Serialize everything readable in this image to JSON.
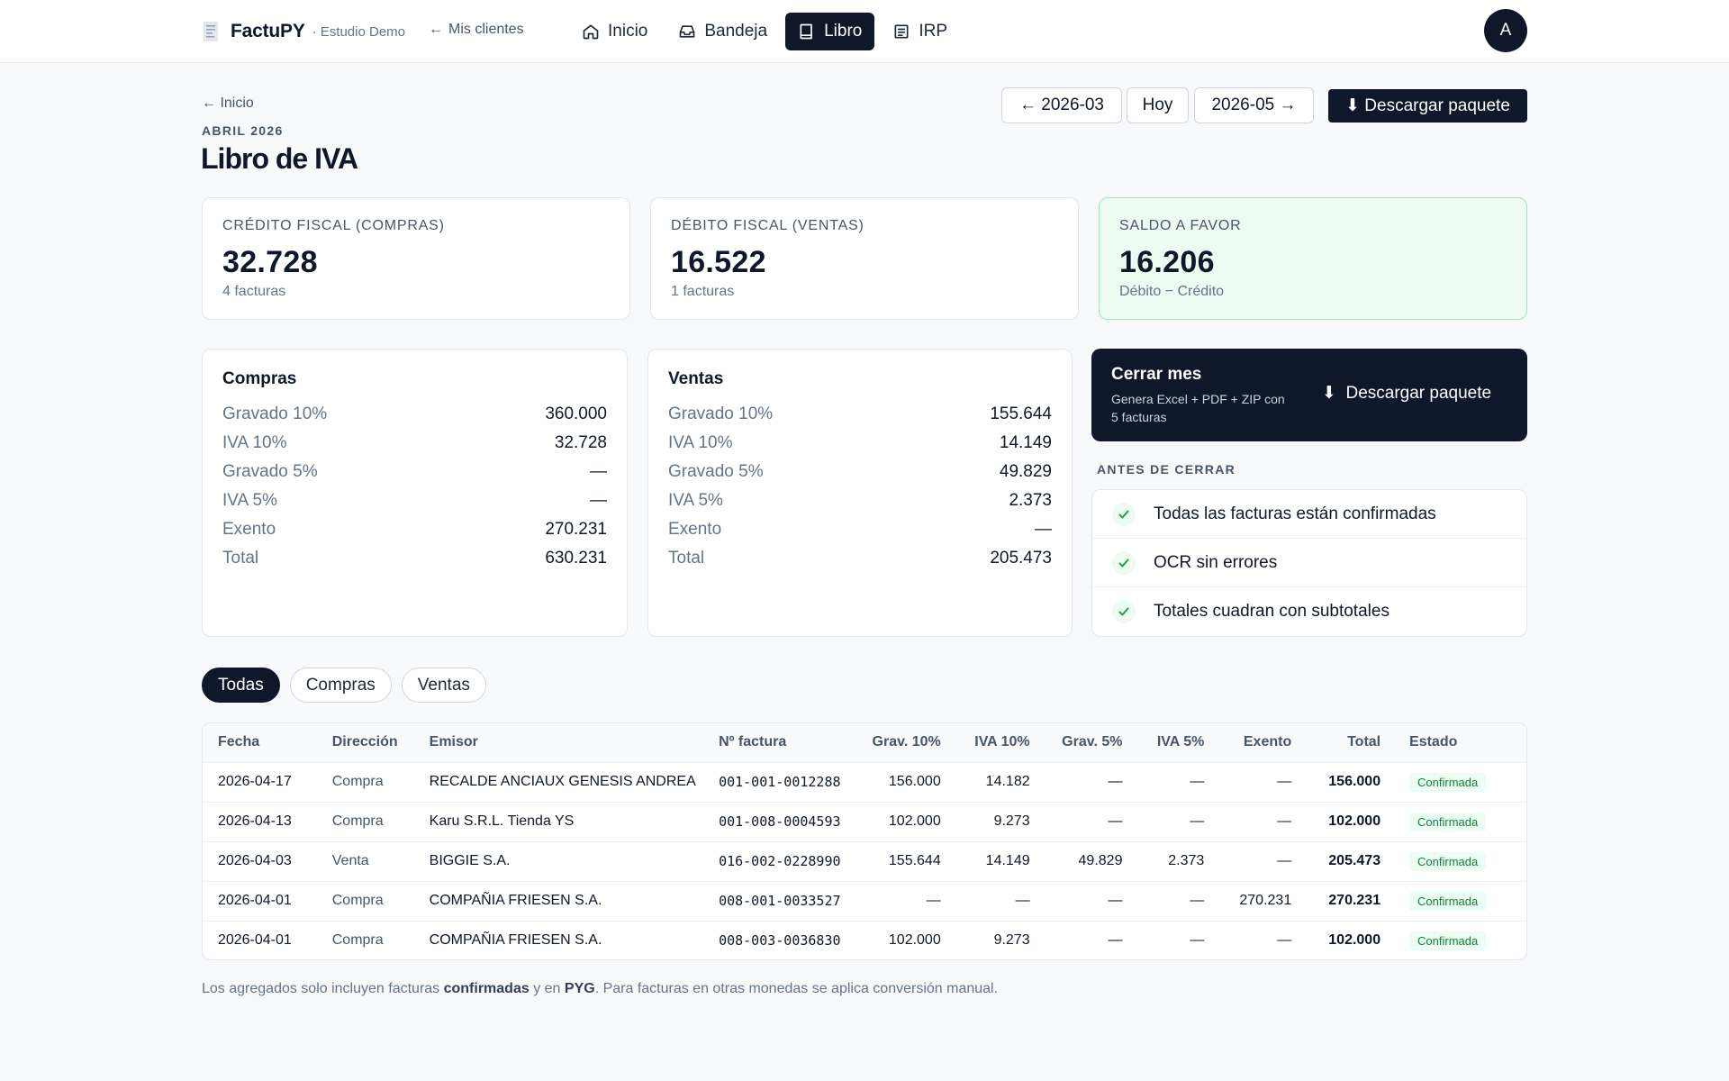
{
  "app": {
    "name": "FactuPY",
    "org": "· Estudio Demo",
    "back_clients": "Mis clientes"
  },
  "nav": {
    "inicio": "Inicio",
    "bandeja": "Bandeja",
    "libro": "Libro",
    "irp": "IRP",
    "active": "Libro"
  },
  "user": {
    "avatar_letter": "A"
  },
  "header": {
    "crumb": "Inicio",
    "eyebrow": "ABRIL 2026",
    "title": "Libro de IVA",
    "prev_month": "2026-03",
    "today": "Hoy",
    "next_month": "2026-05",
    "download": "Descargar paquete"
  },
  "summary": {
    "credit": {
      "label": "CRÉDITO FISCAL (COMPRAS)",
      "value": "32.728",
      "sub": "4 facturas"
    },
    "debit": {
      "label": "DÉBITO FISCAL (VENTAS)",
      "value": "16.522",
      "sub": "1 facturas"
    },
    "balance": {
      "label": "SALDO A FAVOR",
      "value": "16.206",
      "sub": "Débito − Crédito"
    }
  },
  "compras": {
    "title": "Compras",
    "rows": [
      {
        "label": "Gravado 10%",
        "value": "360.000"
      },
      {
        "label": "IVA 10%",
        "value": "32.728"
      },
      {
        "label": "Gravado 5%",
        "value": "—"
      },
      {
        "label": "IVA 5%",
        "value": "—"
      },
      {
        "label": "Exento",
        "value": "270.231"
      },
      {
        "label": "Total",
        "value": "630.231"
      }
    ]
  },
  "ventas": {
    "title": "Ventas",
    "rows": [
      {
        "label": "Gravado 10%",
        "value": "155.644"
      },
      {
        "label": "IVA 10%",
        "value": "14.149"
      },
      {
        "label": "Gravado 5%",
        "value": "49.829"
      },
      {
        "label": "IVA 5%",
        "value": "2.373"
      },
      {
        "label": "Exento",
        "value": "—"
      },
      {
        "label": "Total",
        "value": "205.473"
      }
    ]
  },
  "close_month": {
    "title": "Cerrar mes",
    "desc": "Genera Excel + PDF + ZIP con 5 facturas",
    "button": "Descargar paquete"
  },
  "checklist": {
    "label": "ANTES DE CERRAR",
    "items": [
      "Todas las facturas están confirmadas",
      "OCR sin errores",
      "Totales cuadran con subtotales"
    ]
  },
  "filters": {
    "all": "Todas",
    "purchases": "Compras",
    "sales": "Ventas",
    "active": "Todas"
  },
  "table": {
    "headers": [
      "Fecha",
      "Dirección",
      "Emisor",
      "Nº factura",
      "Grav. 10%",
      "IVA 10%",
      "Grav. 5%",
      "IVA 5%",
      "Exento",
      "Total",
      "Estado"
    ],
    "rows": [
      [
        "2026-04-17",
        "Compra",
        "RECALDE ANCIAUX GENESIS ANDREA",
        "001-001-0012288",
        "156.000",
        "14.182",
        "—",
        "—",
        "—",
        "156.000",
        "Confirmada"
      ],
      [
        "2026-04-13",
        "Compra",
        "Karu S.R.L. Tienda YS",
        "001-008-0004593",
        "102.000",
        "9.273",
        "—",
        "—",
        "—",
        "102.000",
        "Confirmada"
      ],
      [
        "2026-04-03",
        "Venta",
        "BIGGIE S.A.",
        "016-002-0228990",
        "155.644",
        "14.149",
        "49.829",
        "2.373",
        "—",
        "205.473",
        "Confirmada"
      ],
      [
        "2026-04-01",
        "Compra",
        "COMPAÑIA FRIESEN S.A.",
        "008-001-0033527",
        "—",
        "—",
        "—",
        "—",
        "270.231",
        "270.231",
        "Confirmada"
      ],
      [
        "2026-04-01",
        "Compra",
        "COMPAÑIA FRIESEN S.A.",
        "008-003-0036830",
        "102.000",
        "9.273",
        "—",
        "—",
        "—",
        "102.000",
        "Confirmada"
      ]
    ]
  },
  "footnote": {
    "p1": "Los agregados solo incluyen facturas ",
    "b1": "confirmadas",
    "p2": " y en ",
    "b2": "PYG",
    "p3": ". Para facturas en otras monedas se aplica conversión manual."
  },
  "colors": {
    "primary": "#0f172a",
    "success_bg": "#eefbf3",
    "success": "#15803d",
    "muted": "#64748b"
  }
}
